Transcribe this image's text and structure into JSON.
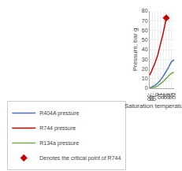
{
  "chart_data": {
    "type": "line",
    "xlabel": "Saturation temperature, °C",
    "ylabel": "Pressure, bar g",
    "xlim": [
      -30,
      60
    ],
    "ylim": [
      0,
      80
    ],
    "xticks": [
      -30,
      -20,
      -10,
      0,
      10,
      20,
      30,
      40,
      50,
      60
    ],
    "yticks": [
      0,
      10,
      20,
      30,
      40,
      50,
      60,
      70,
      80
    ],
    "grid": true,
    "legend": "bottom",
    "series": [
      {
        "name": "R404A pressure",
        "color": "#4472c4",
        "x": [
          -30,
          -20,
          -10,
          0,
          10,
          20,
          30,
          40,
          50,
          60
        ],
        "values": [
          0.3,
          1.5,
          3.2,
          5.5,
          8.5,
          12.5,
          17.0,
          22.0,
          27.5,
          29.5
        ]
      },
      {
        "name": "R744 pressure",
        "color": "#cc0000",
        "x": [
          -30,
          -20,
          -10,
          0,
          10,
          20,
          31
        ],
        "values": [
          13.5,
          19.5,
          26.5,
          34.8,
          45.0,
          57.5,
          72.8
        ]
      },
      {
        "name": "R134a pressure",
        "color": "#70ad47",
        "x": [
          -30,
          -20,
          -10,
          0,
          10,
          20,
          30,
          40,
          50,
          60
        ],
        "values": [
          0.1,
          0.5,
          1.3,
          2.6,
          4.5,
          7.0,
          10.0,
          13.0,
          15.5,
          16.5
        ]
      },
      {
        "name": "Denotes the critical point of R744",
        "type": "scatter",
        "marker": "diamond",
        "color": "#cc0000",
        "x": [
          31
        ],
        "values": [
          72.8
        ]
      }
    ]
  }
}
